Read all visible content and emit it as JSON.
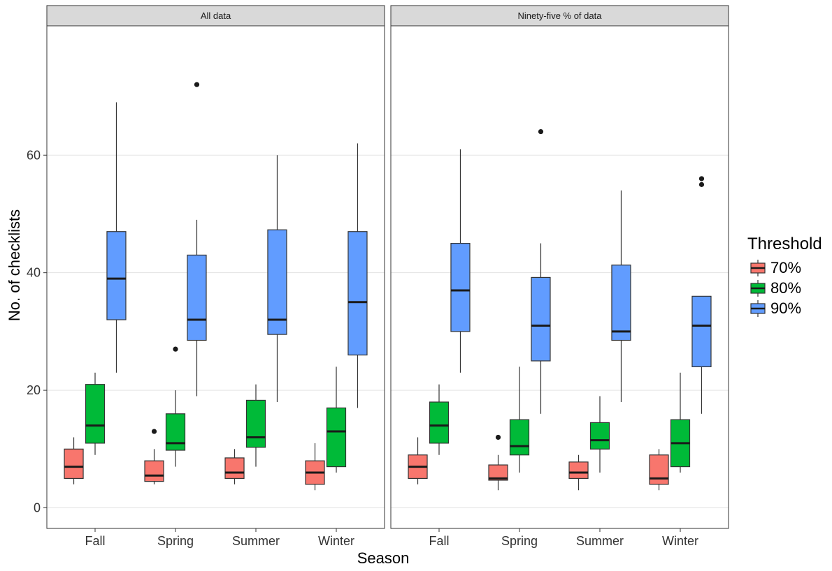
{
  "chart_data": {
    "type": "boxplot",
    "xlabel": "Season",
    "ylabel": "No. of checklists",
    "categories": [
      "Fall",
      "Spring",
      "Summer",
      "Winter"
    ],
    "y_ticks": [
      0,
      20,
      40,
      60
    ],
    "ylim": [
      -3.5,
      82
    ],
    "grid": "horizontal major",
    "legend": {
      "title": "Threshold",
      "position": "right",
      "entries": [
        {
          "label": "70%",
          "color": "#F8766D"
        },
        {
          "label": "80%",
          "color": "#00BA38"
        },
        {
          "label": "90%",
          "color": "#619CFF"
        }
      ]
    },
    "panels": [
      {
        "title": "All data",
        "groups": [
          {
            "season": "Fall",
            "threshold": "70%",
            "min": 4,
            "q1": 5,
            "median": 7,
            "q3": 10,
            "max": 12,
            "outliers": []
          },
          {
            "season": "Fall",
            "threshold": "80%",
            "min": 9,
            "q1": 11,
            "median": 14,
            "q3": 21,
            "max": 23,
            "outliers": []
          },
          {
            "season": "Fall",
            "threshold": "90%",
            "min": 23,
            "q1": 32,
            "median": 39,
            "q3": 47,
            "max": 69,
            "outliers": []
          },
          {
            "season": "Spring",
            "threshold": "70%",
            "min": 4,
            "q1": 4.5,
            "median": 5.5,
            "q3": 8,
            "max": 10,
            "outliers": [
              13
            ]
          },
          {
            "season": "Spring",
            "threshold": "80%",
            "min": 7,
            "q1": 9.8,
            "median": 11,
            "q3": 16,
            "max": 20,
            "outliers": [
              27
            ]
          },
          {
            "season": "Spring",
            "threshold": "90%",
            "min": 19,
            "q1": 28.5,
            "median": 32,
            "q3": 43,
            "max": 49,
            "outliers": [
              72
            ]
          },
          {
            "season": "Summer",
            "threshold": "70%",
            "min": 4,
            "q1": 5,
            "median": 6,
            "q3": 8.5,
            "max": 10,
            "outliers": []
          },
          {
            "season": "Summer",
            "threshold": "80%",
            "min": 7,
            "q1": 10.3,
            "median": 12,
            "q3": 18.3,
            "max": 21,
            "outliers": []
          },
          {
            "season": "Summer",
            "threshold": "90%",
            "min": 18,
            "q1": 29.5,
            "median": 32,
            "q3": 47.3,
            "max": 60,
            "outliers": []
          },
          {
            "season": "Winter",
            "threshold": "70%",
            "min": 3,
            "q1": 4,
            "median": 6,
            "q3": 8,
            "max": 11,
            "outliers": []
          },
          {
            "season": "Winter",
            "threshold": "80%",
            "min": 6,
            "q1": 7,
            "median": 13,
            "q3": 17,
            "max": 24,
            "outliers": []
          },
          {
            "season": "Winter",
            "threshold": "90%",
            "min": 17,
            "q1": 26,
            "median": 35,
            "q3": 47,
            "max": 62,
            "outliers": []
          }
        ]
      },
      {
        "title": "Ninety-five % of data",
        "groups": [
          {
            "season": "Fall",
            "threshold": "70%",
            "min": 4,
            "q1": 5,
            "median": 7,
            "q3": 9,
            "max": 12,
            "outliers": []
          },
          {
            "season": "Fall",
            "threshold": "80%",
            "min": 9,
            "q1": 11,
            "median": 14,
            "q3": 18,
            "max": 21,
            "outliers": []
          },
          {
            "season": "Fall",
            "threshold": "90%",
            "min": 23,
            "q1": 30,
            "median": 37,
            "q3": 45,
            "max": 61,
            "outliers": []
          },
          {
            "season": "Spring",
            "threshold": "70%",
            "min": 3,
            "q1": 4.7,
            "median": 5,
            "q3": 7.3,
            "max": 9,
            "outliers": [
              12
            ]
          },
          {
            "season": "Spring",
            "threshold": "80%",
            "min": 6,
            "q1": 9,
            "median": 10.5,
            "q3": 15,
            "max": 24,
            "outliers": []
          },
          {
            "season": "Spring",
            "threshold": "90%",
            "min": 16,
            "q1": 25,
            "median": 31,
            "q3": 39.2,
            "max": 45,
            "outliers": [
              64
            ]
          },
          {
            "season": "Summer",
            "threshold": "70%",
            "min": 3,
            "q1": 5,
            "median": 6,
            "q3": 7.8,
            "max": 9,
            "outliers": []
          },
          {
            "season": "Summer",
            "threshold": "80%",
            "min": 6,
            "q1": 10,
            "median": 11.5,
            "q3": 14.5,
            "max": 19,
            "outliers": []
          },
          {
            "season": "Summer",
            "threshold": "90%",
            "min": 18,
            "q1": 28.5,
            "median": 30,
            "q3": 41.3,
            "max": 54,
            "outliers": []
          },
          {
            "season": "Winter",
            "threshold": "70%",
            "min": 3,
            "q1": 4,
            "median": 5,
            "q3": 9,
            "max": 10,
            "outliers": []
          },
          {
            "season": "Winter",
            "threshold": "80%",
            "min": 6,
            "q1": 7,
            "median": 11,
            "q3": 15,
            "max": 23,
            "outliers": []
          },
          {
            "season": "Winter",
            "threshold": "90%",
            "min": 16,
            "q1": 24,
            "median": 31,
            "q3": 36,
            "max": 36,
            "outliers": [
              55,
              56
            ]
          }
        ]
      }
    ]
  }
}
